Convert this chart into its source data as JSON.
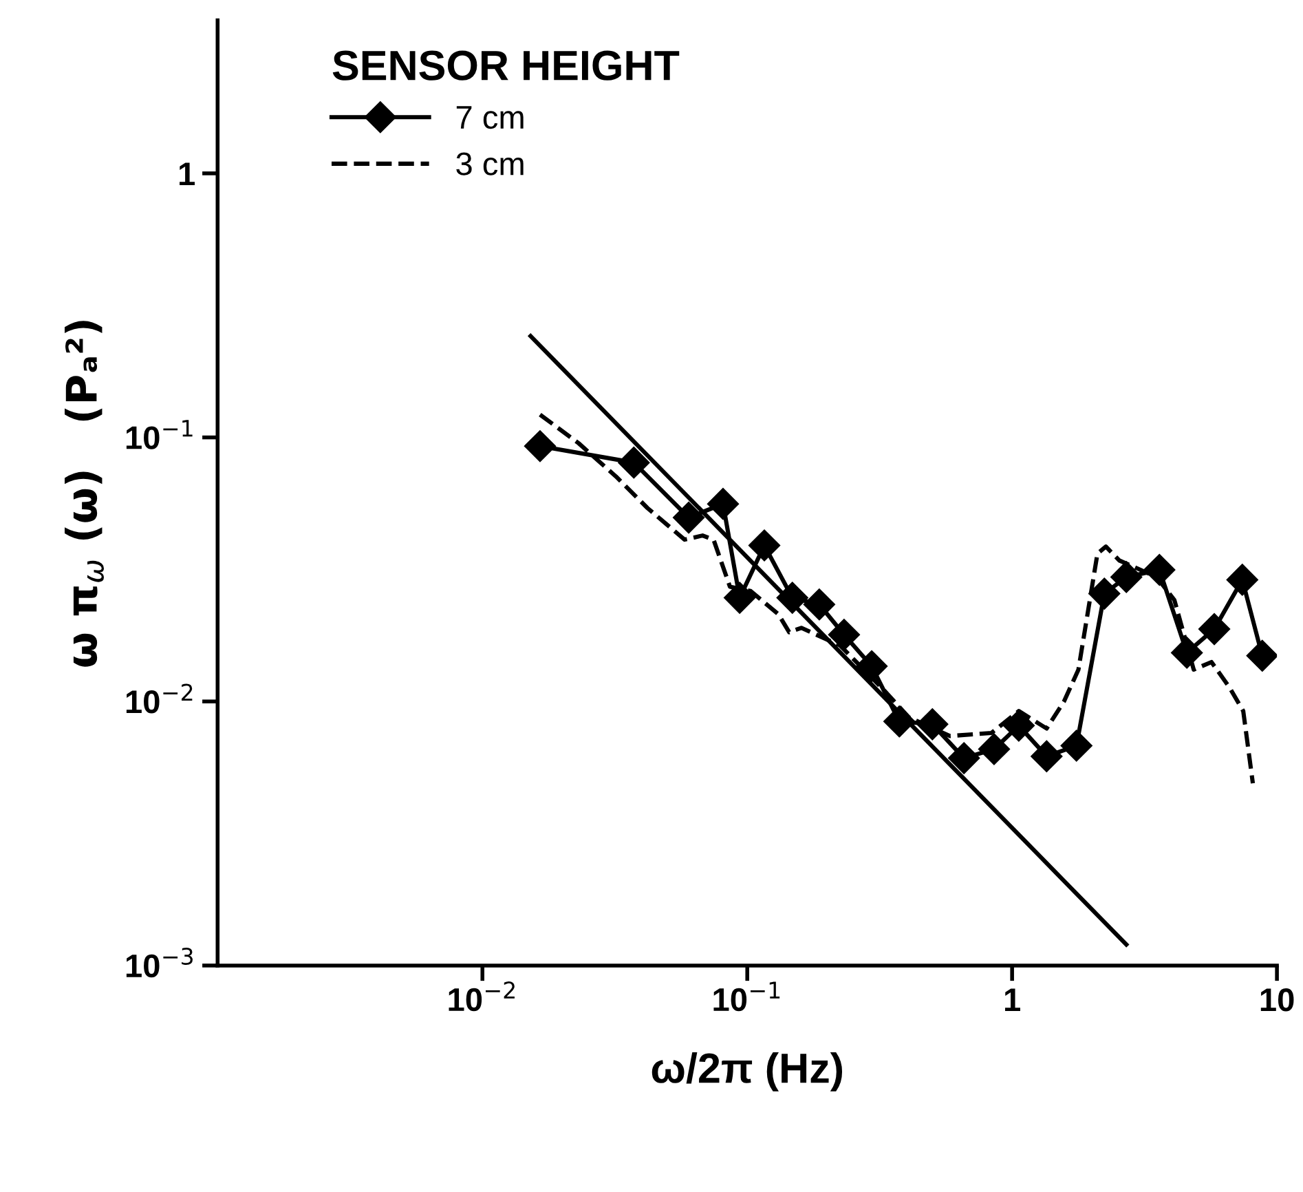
{
  "chart_data": {
    "type": "line",
    "xlabel": "ω/2π (Hz)",
    "ylabel": "ω π$_{ω}$ (ω)   (Pₐ²)",
    "legend_title": "SENSOR HEIGHT",
    "legend": "top left",
    "log": "xy",
    "grid": false,
    "xlim": [
      0.001,
      10
    ],
    "ylim": [
      0.001,
      3.8
    ],
    "xticks": [
      {
        "value": 0.01,
        "label": "10$^{−2}$"
      },
      {
        "value": 0.1,
        "label": "10$^{−1}$"
      },
      1,
      10
    ],
    "yticks": [
      {
        "value": 0.001,
        "label": "10$^{−3}$"
      },
      {
        "value": 0.01,
        "label": "10$^{−2}$"
      },
      {
        "value": 0.1,
        "label": "10$^{−1}$"
      },
      1
    ],
    "series": [
      {
        "name": "7 cm",
        "color": "#000000",
        "marker": "diamond",
        "line_style": "solid",
        "x": [
          0.0165,
          0.0373,
          0.0601,
          0.081,
          0.0936,
          0.116,
          0.148,
          0.187,
          0.232,
          0.295,
          0.375,
          0.5,
          0.658,
          0.855,
          1.06,
          1.35,
          1.75,
          2.23,
          2.7,
          3.6,
          4.57,
          5.8,
          7.4,
          8.8
        ],
        "values": [
          0.0927,
          0.0803,
          0.0497,
          0.056,
          0.0247,
          0.039,
          0.0247,
          0.0233,
          0.0179,
          0.0136,
          0.0084,
          0.0082,
          0.0061,
          0.0066,
          0.0081,
          0.0062,
          0.0068,
          0.0256,
          0.0296,
          0.0315,
          0.0153,
          0.0188,
          0.0289,
          0.0149
        ]
      },
      {
        "name": "3 cm",
        "color": "#000000",
        "marker": "none",
        "line_style": "dashed",
        "x": [
          0.0165,
          0.0231,
          0.0319,
          0.042,
          0.058,
          0.0678,
          0.0746,
          0.086,
          0.103,
          0.131,
          0.144,
          0.16,
          0.224,
          0.321,
          0.408,
          0.583,
          0.836,
          1.06,
          1.35,
          1.57,
          1.78,
          2.1,
          2.26,
          2.54,
          3.51,
          4.1,
          4.85,
          5.66,
          6.62,
          7.46,
          8.11
        ],
        "values": [
          0.122,
          0.095,
          0.0712,
          0.054,
          0.041,
          0.0425,
          0.041,
          0.0272,
          0.0262,
          0.0214,
          0.0183,
          0.019,
          0.0163,
          0.0113,
          0.0087,
          0.0074,
          0.0076,
          0.0092,
          0.0079,
          0.01,
          0.0132,
          0.0363,
          0.0386,
          0.0342,
          0.0296,
          0.0242,
          0.0132,
          0.0141,
          0.0113,
          0.0092,
          0.0049
        ]
      },
      {
        "type": "line",
        "color": "#000000",
        "marker": "none",
        "line_style": "solid",
        "x": [
          0.0152,
          2.7
        ],
        "values": [
          0.242,
          0.0012
        ]
      }
    ]
  }
}
